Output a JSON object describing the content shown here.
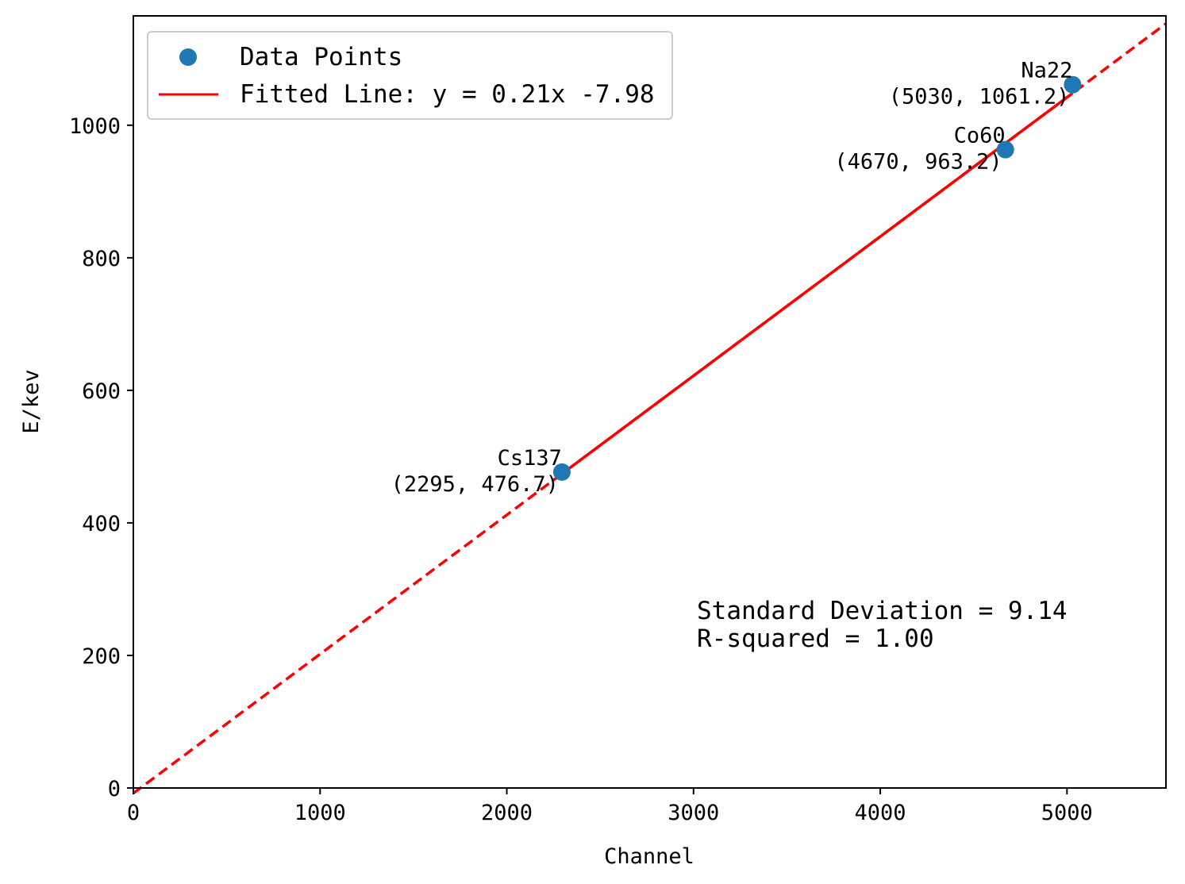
{
  "chart_data": {
    "type": "scatter",
    "xlabel": "Channel",
    "ylabel": "E/kev",
    "xlim": [
      0,
      5530
    ],
    "ylim": [
      0,
      1165
    ],
    "xticks": [
      0,
      1000,
      2000,
      3000,
      4000,
      5000
    ],
    "yticks": [
      0,
      200,
      400,
      600,
      800,
      1000
    ],
    "xtick_labels": [
      "0",
      "1000",
      "2000",
      "3000",
      "4000",
      "5000"
    ],
    "ytick_labels": [
      "0",
      "200",
      "400",
      "600",
      "800",
      "1000"
    ],
    "grid": false,
    "legend_position": "upper-left",
    "points": [
      {
        "x": 2295,
        "y": 476.7,
        "name": "Cs137",
        "coord_label": "(2295, 476.7)"
      },
      {
        "x": 4670,
        "y": 963.2,
        "name": "Co60",
        "coord_label": "(4670, 963.2)"
      },
      {
        "x": 5030,
        "y": 1061.2,
        "name": "Na22",
        "coord_label": "(5030, 1061.2)"
      }
    ],
    "fit": {
      "slope": 0.21,
      "intercept": -7.98,
      "solid_range": [
        2295,
        5030
      ],
      "dashed_range": [
        0,
        5530
      ]
    },
    "series": [
      {
        "name": "Data Points",
        "color": "#1f77b4",
        "kind": "scatter"
      },
      {
        "name": "Fitted Line: y = 0.21x  -7.98",
        "color": "#ff0000",
        "kind": "line"
      }
    ],
    "annotations": {
      "std_dev": "Standard Deviation = 9.14",
      "r_squared": "R-squared = 1.00"
    }
  }
}
